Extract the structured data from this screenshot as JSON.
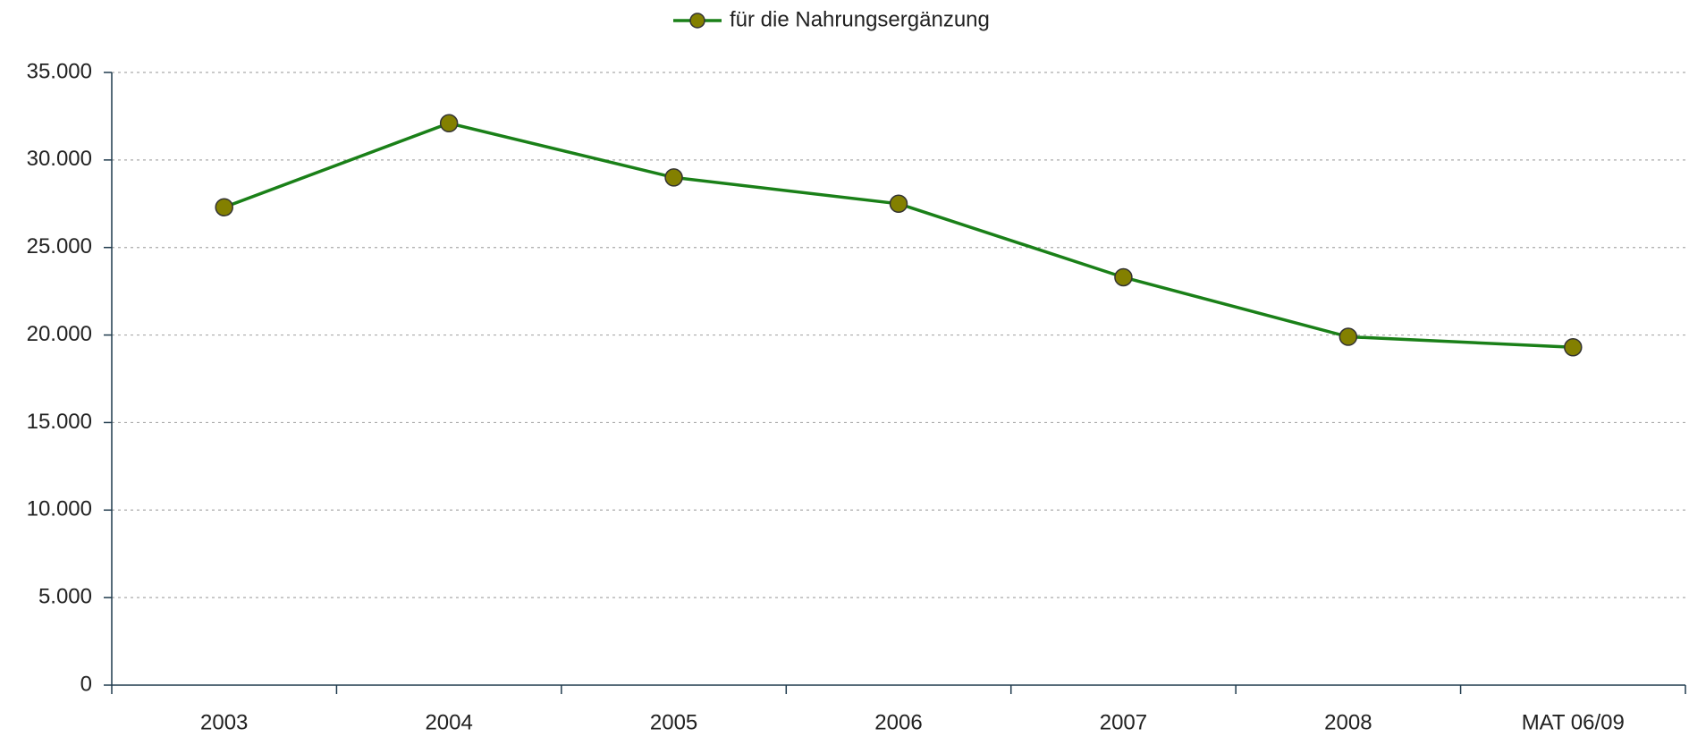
{
  "chart_data": {
    "type": "line",
    "categories": [
      "2003",
      "2004",
      "2005",
      "2006",
      "2007",
      "2008",
      "MAT 06/09"
    ],
    "series": [
      {
        "name": "für die Nahrungsergänzung",
        "color": "#1a8018",
        "marker_color": "#838000",
        "values": [
          27300,
          32100,
          29000,
          27500,
          23300,
          19900,
          19300
        ]
      }
    ],
    "ylim": [
      0,
      35000
    ],
    "yticks": [
      0,
      {
        "value": 5000,
        "label": "5.000"
      },
      {
        "value": 10000,
        "label": "10.000"
      },
      {
        "value": 15000,
        "label": "15.000"
      },
      {
        "value": 20000,
        "label": "20.000"
      },
      {
        "value": 25000,
        "label": "25.000"
      },
      {
        "value": 30000,
        "label": "30.000"
      },
      {
        "value": 35000,
        "label": "35.000"
      }
    ],
    "grid": true,
    "legend": "top"
  }
}
